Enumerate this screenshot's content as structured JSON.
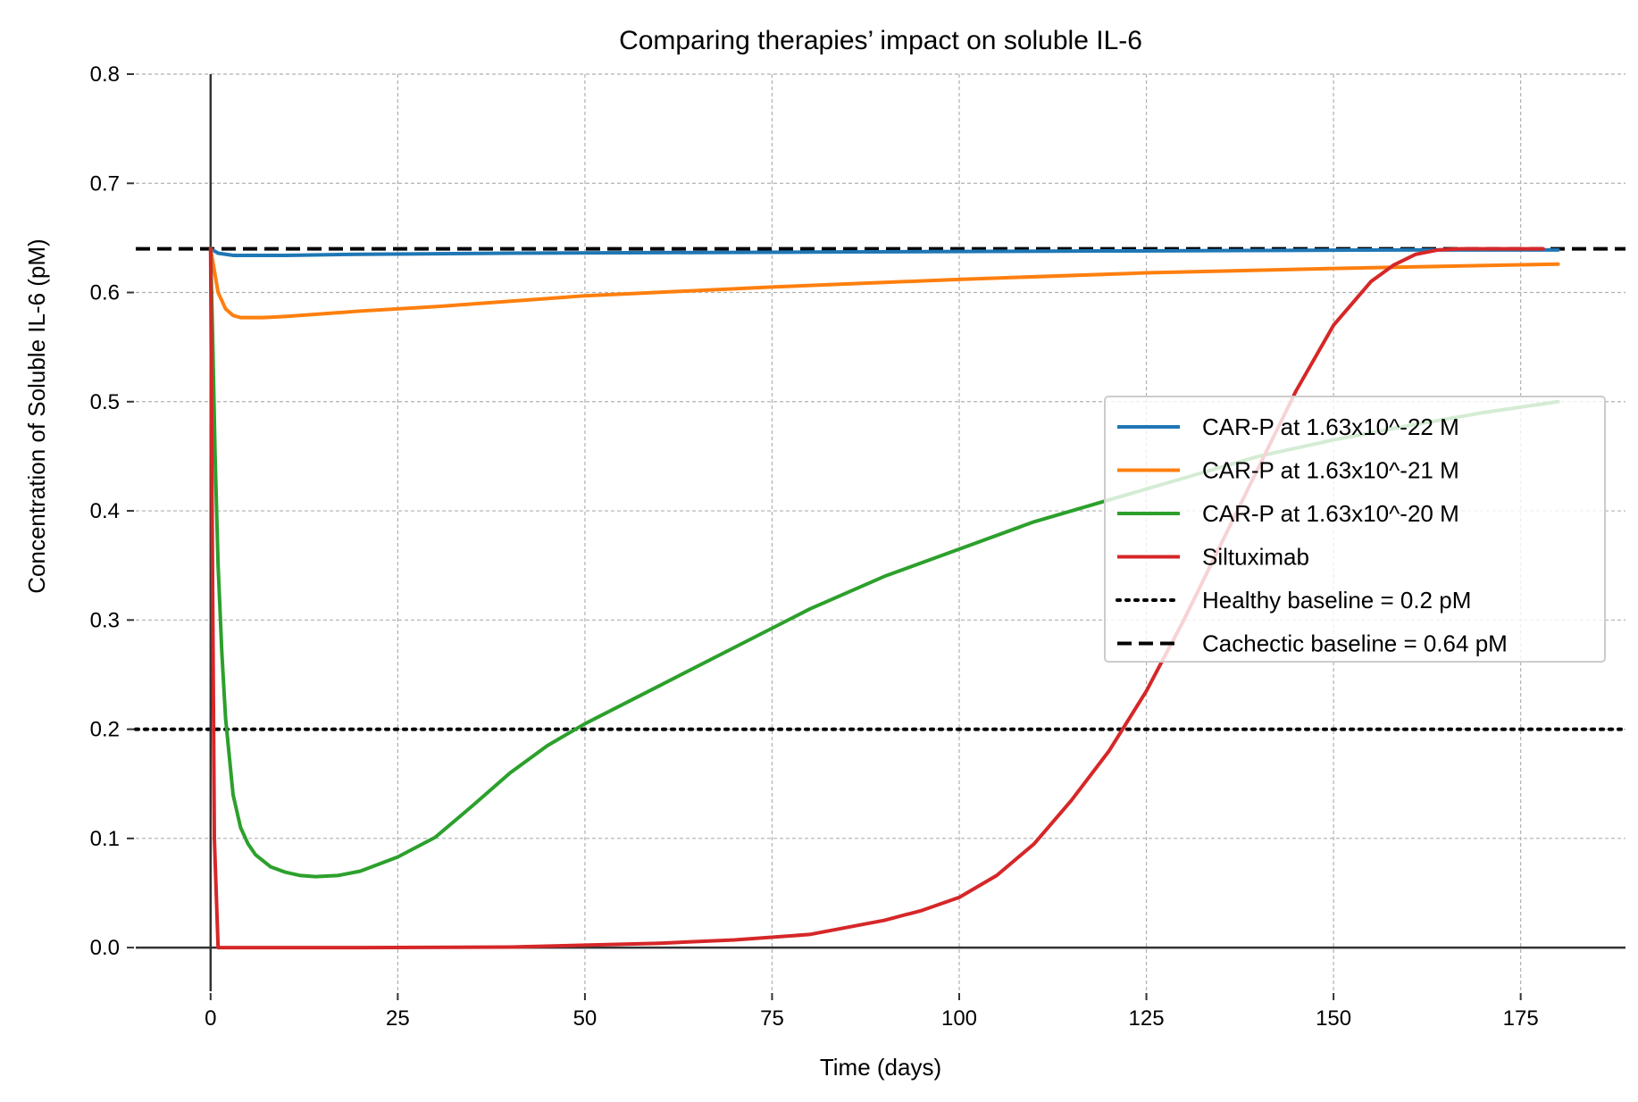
{
  "chart_data": {
    "type": "line",
    "title": "Comparing therapies’ impact on soluble IL-6",
    "xlabel": "Time (days)",
    "ylabel": "Concentration of Soluble IL-6 (pM)",
    "xlim": [
      -10,
      189
    ],
    "ylim": [
      -0.04,
      0.8
    ],
    "xticks": [
      0,
      25,
      50,
      75,
      100,
      125,
      150,
      175
    ],
    "yticks": [
      0.0,
      0.1,
      0.2,
      0.3,
      0.4,
      0.5,
      0.6,
      0.7,
      0.8
    ],
    "grid": true,
    "legend_position": "center-right",
    "series": [
      {
        "name": "CAR-P at 1.63x10^-22 M",
        "color": "#1f77b4",
        "x": [
          0,
          0.5,
          1,
          2,
          3,
          5,
          10,
          20,
          40,
          60,
          80,
          100,
          120,
          140,
          160,
          180
        ],
        "y": [
          0.64,
          0.638,
          0.636,
          0.635,
          0.634,
          0.634,
          0.634,
          0.635,
          0.636,
          0.6365,
          0.637,
          0.6375,
          0.638,
          0.6385,
          0.639,
          0.639
        ]
      },
      {
        "name": "CAR-P at 1.63x10^-21 M",
        "color": "#ff7f0e",
        "x": [
          0,
          0.5,
          1,
          2,
          3,
          4,
          5,
          7,
          10,
          20,
          30,
          50,
          75,
          100,
          125,
          150,
          180
        ],
        "y": [
          0.64,
          0.62,
          0.6,
          0.585,
          0.579,
          0.577,
          0.577,
          0.577,
          0.578,
          0.583,
          0.587,
          0.597,
          0.605,
          0.612,
          0.618,
          0.622,
          0.626
        ]
      },
      {
        "name": "CAR-P at 1.63x10^-20 M",
        "color": "#2ca02c",
        "x": [
          0,
          0.3,
          0.6,
          1,
          1.5,
          2,
          3,
          4,
          5,
          6,
          8,
          10,
          12,
          14,
          17,
          20,
          25,
          30,
          35,
          40,
          45,
          50,
          60,
          70,
          80,
          90,
          100,
          110,
          120,
          130,
          140,
          150,
          160,
          170,
          180
        ],
        "y": [
          0.64,
          0.55,
          0.45,
          0.35,
          0.27,
          0.21,
          0.14,
          0.11,
          0.095,
          0.085,
          0.074,
          0.069,
          0.066,
          0.065,
          0.066,
          0.07,
          0.083,
          0.101,
          0.13,
          0.16,
          0.185,
          0.205,
          0.24,
          0.275,
          0.31,
          0.34,
          0.365,
          0.39,
          0.41,
          0.43,
          0.45,
          0.465,
          0.478,
          0.49,
          0.5
        ]
      },
      {
        "name": "Siltuximab",
        "color": "#d62728",
        "x": [
          0,
          0.2,
          0.5,
          1,
          5,
          20,
          40,
          60,
          70,
          80,
          90,
          95,
          100,
          105,
          110,
          115,
          120,
          125,
          130,
          135,
          140,
          145,
          150,
          155,
          158,
          161,
          164,
          167,
          170,
          173,
          176,
          178
        ],
        "y": [
          0.64,
          0.4,
          0.1,
          0.0,
          0.0,
          0.0,
          0.0005,
          0.004,
          0.007,
          0.012,
          0.025,
          0.034,
          0.046,
          0.066,
          0.095,
          0.135,
          0.18,
          0.235,
          0.3,
          0.37,
          0.44,
          0.51,
          0.57,
          0.61,
          0.625,
          0.635,
          0.639,
          0.64,
          0.64,
          0.64,
          0.64,
          0.64
        ]
      }
    ],
    "reference_lines": [
      {
        "name": "Healthy baseline = 0.2 pM",
        "y": 0.2,
        "style": "dotted",
        "color": "#000000"
      },
      {
        "name": "Cachectic baseline = 0.64 pM",
        "y": 0.64,
        "style": "dashed",
        "color": "#000000"
      }
    ]
  }
}
